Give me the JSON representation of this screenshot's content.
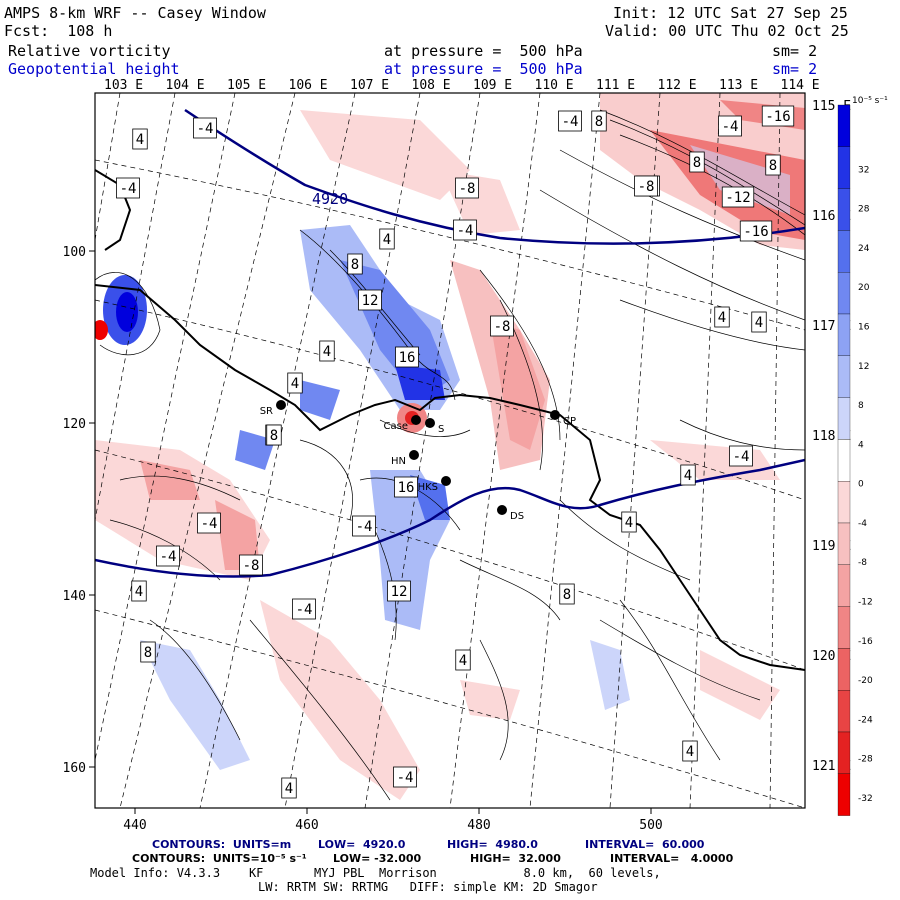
{
  "header": {
    "model_title": "AMPS 8-km WRF -- Casey Window",
    "forecast": "Fcst:  108 h",
    "init": "Init: 12 UTC Sat 27 Sep 25",
    "valid": "Valid: 00 UTC Thu 02 Oct 25",
    "field1": {
      "name": "Relative vorticity",
      "level": "at pressure =  500 hPa",
      "smooth": "sm= 2"
    },
    "field2": {
      "name": "Geopotential height",
      "level": "at pressure =  500 hPa",
      "smooth": "sm= 2"
    }
  },
  "axes": {
    "top_lon": [
      "103 E",
      "104 E",
      "105 E",
      "106 E",
      "107 E",
      "108 E",
      "109 E",
      "110 E",
      "111 E",
      "112 E",
      "113 E",
      "114 E"
    ],
    "right_lon": [
      "115 E",
      "116 E",
      "117 E",
      "118 E",
      "119 E",
      "120 E",
      "121 E"
    ],
    "x_ticks": [
      "440",
      "460",
      "480",
      "500"
    ],
    "y_ticks": [
      "100",
      "120",
      "140",
      "160"
    ]
  },
  "height_contour": {
    "label": "4920"
  },
  "contour_labels": [
    "4",
    "-4",
    "-4",
    "8",
    "-16",
    "-8",
    "8",
    "-8",
    "-12",
    "-16",
    "4",
    "-4",
    "8",
    "-4",
    "-8",
    "12",
    "4",
    "16",
    "4",
    "8",
    "4",
    "4",
    "-4",
    "8",
    "-8",
    "-4",
    "-8",
    "-4",
    "16",
    "-4",
    "4",
    "12",
    "-4",
    "8",
    "8",
    "8",
    "4",
    "4",
    "-4",
    "4",
    "4",
    "-4",
    "4"
  ],
  "stations": [
    "SR",
    "Case",
    "S",
    "HN",
    "DS",
    "CP",
    "HKS"
  ],
  "colorbar": {
    "units": "10⁻⁵ s⁻¹",
    "labels": [
      "32",
      "28",
      "24",
      "20",
      "16",
      "12",
      "8",
      "4",
      "0",
      "-4",
      "-8",
      "-12",
      "-16",
      "-20",
      "-24",
      "-28",
      "-32"
    ],
    "colors": [
      "#0000dd",
      "#2233e6",
      "#3a50ea",
      "#5470ee",
      "#7088f1",
      "#8da2f4",
      "#abbbf7",
      "#ccd5fa",
      "#ffffff",
      "#fbd8d8",
      "#f7c0c0",
      "#f4a3a3",
      "#f08585",
      "#ec6363",
      "#e84444",
      "#e42222",
      "#ee0000"
    ]
  },
  "footer": {
    "line1": {
      "label": "CONTOURS:  UNITS=m",
      "low": "LOW=  4920.0",
      "high": "HIGH=  4980.0",
      "interval": "INTERVAL=  60.000"
    },
    "line2": {
      "label": "CONTOURS:  UNITS=10⁻⁵ s⁻¹",
      "low": "LOW= -32.000",
      "high": "HIGH=  32.000",
      "interval": "INTERVAL=   4.0000"
    },
    "line3": "Model Info: V4.3.3    KF       MYJ PBL  Morrison            8.0 km,  60 levels,",
    "line4": "LW: RRTM SW: RRTMG   DIFF: simple KM: 2D Smagor"
  }
}
